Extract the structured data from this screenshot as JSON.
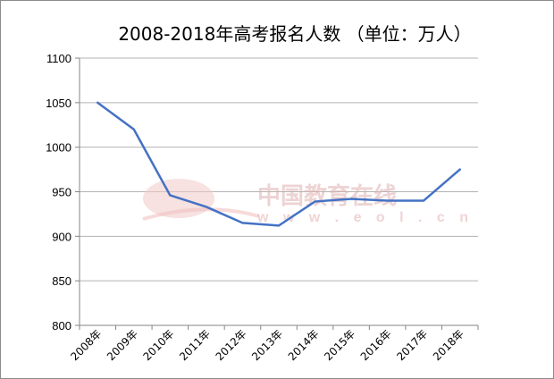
{
  "chart_data": {
    "type": "line",
    "title": "2008-2018年高考报名人数 （单位：万人）",
    "categories": [
      "2008年",
      "2009年",
      "2010年",
      "2011年",
      "2012年",
      "2013年",
      "2014年",
      "2015年",
      "2016年",
      "2017年",
      "2018年"
    ],
    "series": [
      {
        "values": [
          1050,
          1020,
          946,
          933,
          915,
          912,
          939,
          942,
          940,
          940,
          975
        ]
      }
    ],
    "ylim": [
      800,
      1100
    ],
    "yticks": [
      800,
      850,
      900,
      950,
      1000,
      1050,
      1100
    ],
    "grid": true,
    "line_color": "#4472c4"
  },
  "watermark": {
    "text": "中国教育在线",
    "url": "w w w . e o l . c n"
  }
}
